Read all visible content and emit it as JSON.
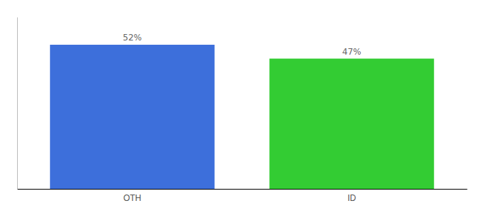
{
  "chart_data": {
    "type": "bar",
    "categories": [
      "OTH",
      "ID"
    ],
    "values": [
      52,
      47
    ],
    "value_labels": [
      "52%",
      "47%"
    ],
    "colors": [
      "#3d6fdb",
      "#33cc33"
    ],
    "ylim": [
      0,
      62
    ],
    "data_labels": true,
    "tick_labels": "x",
    "grid": false
  }
}
